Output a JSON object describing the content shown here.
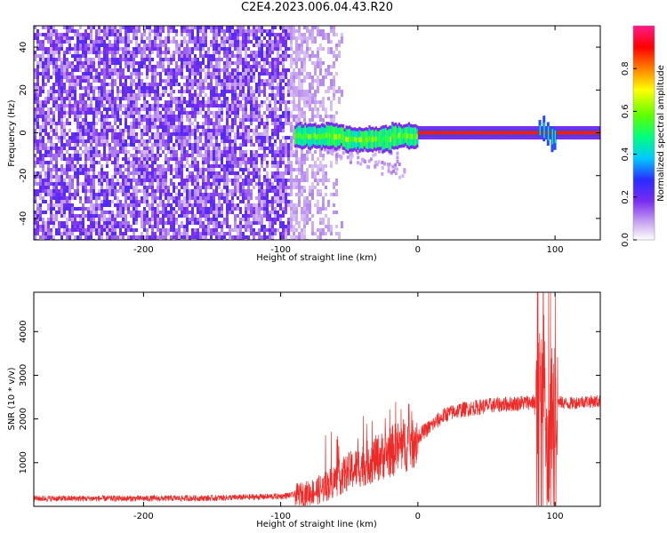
{
  "title": "C2E4.2023.006.04.43.R20",
  "colors": {
    "snr_line": "#ee2a28",
    "axis": "#000000"
  },
  "colorbar": {
    "label": "Normalized spectral amplitude",
    "ticks": [
      0.0,
      0.2,
      0.4,
      0.6,
      0.8
    ],
    "tick_labels": [
      "0.0",
      "0.2",
      "0.4",
      "0.6",
      "0.8"
    ],
    "range": [
      0,
      1
    ],
    "colormap": "rainbow (white-purple-blue-cyan-green-yellow-red-magenta)"
  },
  "chart_data": [
    {
      "type": "heatmap",
      "title": "",
      "xlabel": "Height of straight line (km)",
      "ylabel": "Frequency (Hz)",
      "xlim": [
        -280,
        133
      ],
      "ylim": [
        -50,
        50
      ],
      "x_ticks": [
        -200,
        -100,
        0,
        100
      ],
      "x_tick_labels": [
        "-200",
        "-100",
        "0",
        "100"
      ],
      "y_ticks": [
        -40,
        -20,
        0,
        20,
        40
      ],
      "y_tick_labels": [
        "-40",
        "-20",
        "0",
        "20",
        "40"
      ],
      "grid": false,
      "description_regions": [
        {
          "x_range": [
            -280,
            -90
          ],
          "freq_range": [
            -50,
            50
          ],
          "amplitude": 0.15,
          "pattern": "scattered noise"
        },
        {
          "x_range": [
            -90,
            0
          ],
          "freq_range": [
            -4,
            4
          ],
          "amplitude": 0.55,
          "pattern": "carrier band"
        },
        {
          "x_range": [
            0,
            133
          ],
          "freq_range": [
            -1,
            1
          ],
          "amplitude": 0.9,
          "pattern": "strong carrier"
        },
        {
          "x_range": [
            88,
            100
          ],
          "freq_range": [
            -8,
            6
          ],
          "amplitude": 0.5,
          "pattern": "disturbance"
        }
      ]
    },
    {
      "type": "line",
      "title": "",
      "xlabel": "Height of straight line (km)",
      "ylabel": "SNR (10 * v/v)",
      "xlim": [
        -280,
        133
      ],
      "ylim": [
        0,
        4900
      ],
      "x_ticks": [
        -200,
        -100,
        0,
        100
      ],
      "x_tick_labels": [
        "-200",
        "-100",
        "0",
        "100"
      ],
      "y_ticks": [
        1000,
        2000,
        3000,
        4000
      ],
      "y_tick_labels": [
        "1000",
        "2000",
        "3000",
        "4000"
      ],
      "grid": false,
      "series": [
        {
          "x": [
            -280,
            -250,
            -200,
            -150,
            -100,
            -80,
            -70,
            -60,
            -50,
            -40,
            -30,
            -20,
            -10,
            0,
            10,
            20,
            30,
            40,
            50,
            60,
            70,
            80,
            88,
            92,
            95,
            97,
            100,
            110,
            120,
            133
          ],
          "y": [
            180,
            180,
            180,
            190,
            230,
            300,
            400,
            600,
            800,
            950,
            1100,
            1250,
            1400,
            1600,
            1850,
            2100,
            2200,
            2250,
            2300,
            2330,
            2350,
            2380,
            2400,
            3000,
            500,
            2200,
            2400,
            2350,
            2400,
            2400
          ]
        }
      ]
    }
  ]
}
